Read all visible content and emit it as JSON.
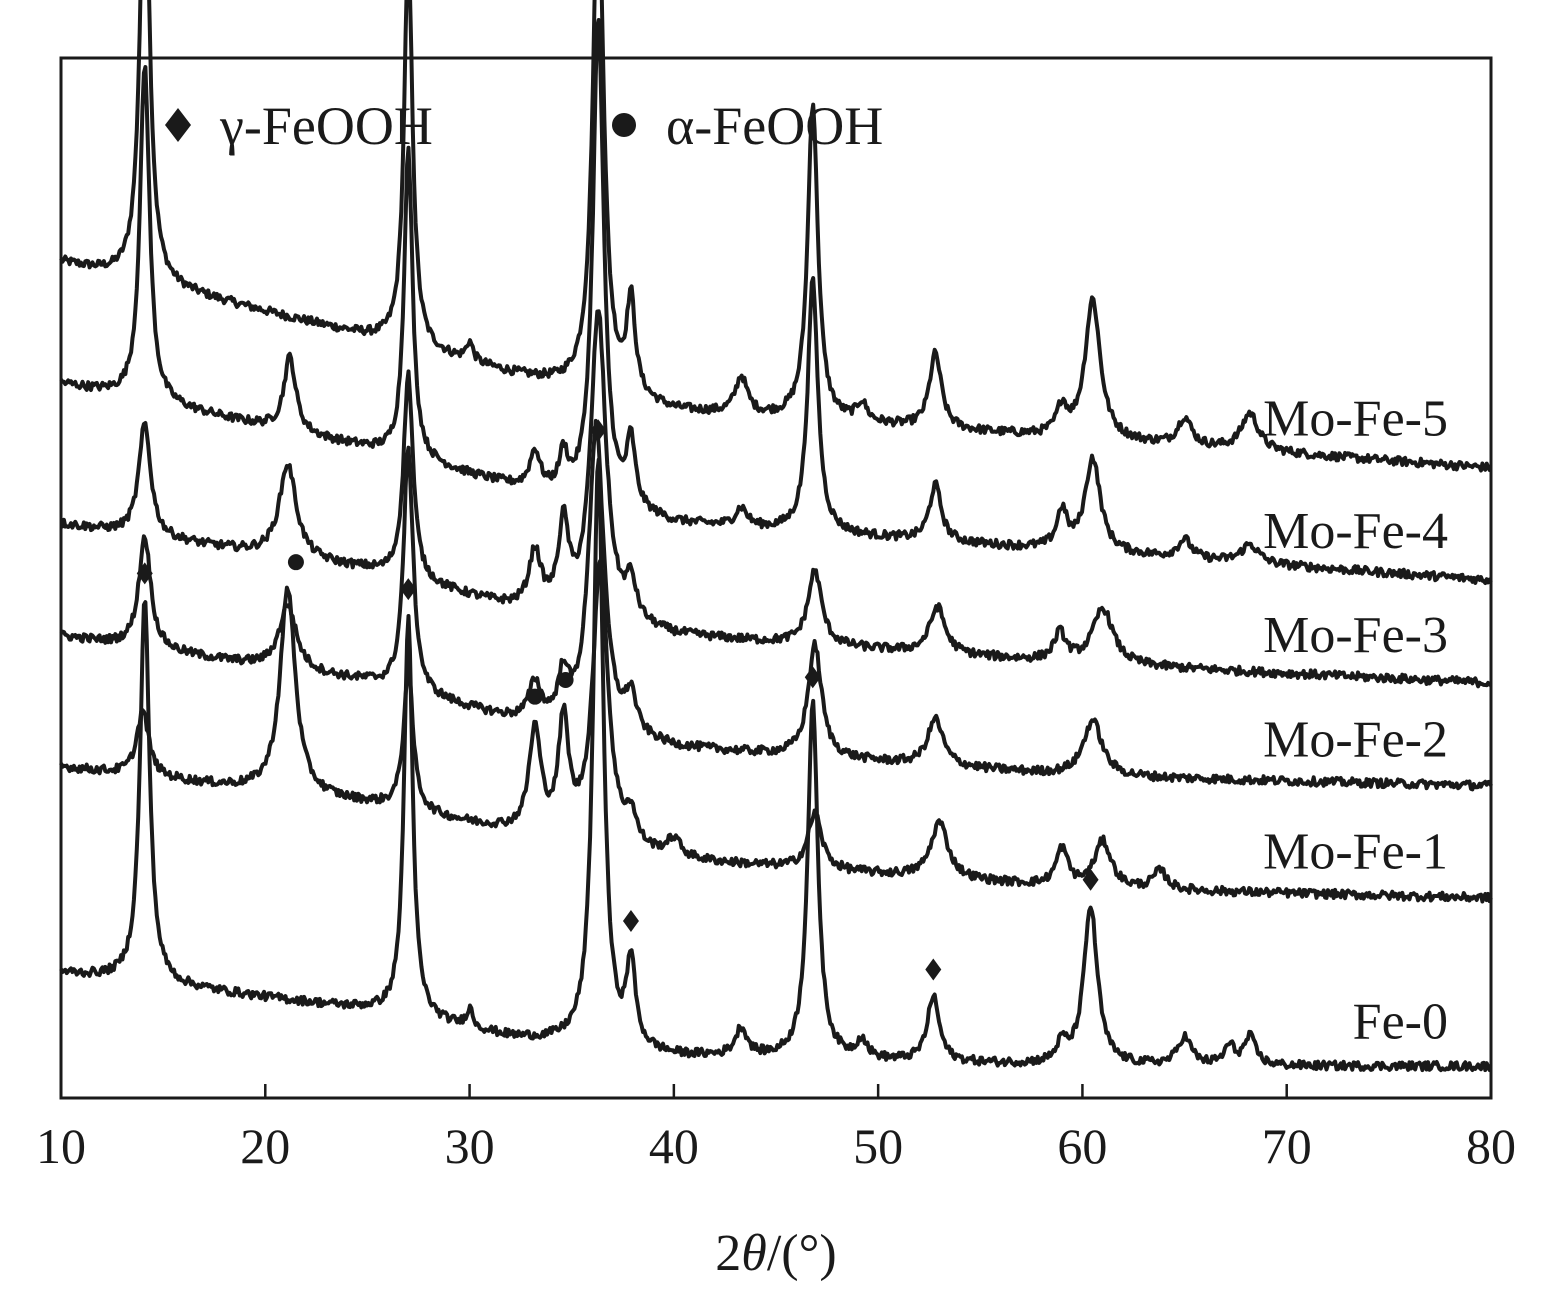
{
  "chart_data": {
    "type": "line",
    "xlabel_parts": {
      "prefix": "2",
      "symbol": "θ",
      "suffix": "/(°)"
    },
    "ylabel": "",
    "xlim": [
      10,
      80
    ],
    "x_ticks": [
      10,
      20,
      30,
      40,
      50,
      60,
      70,
      80
    ],
    "y_axis_shown": false,
    "grid": false,
    "legend_position": "top-left",
    "legend": [
      {
        "marker": "diamond",
        "label": "γ-FeOOH"
      },
      {
        "marker": "circle",
        "label": "α-FeOOH"
      }
    ],
    "line_color": "#1a1a1a",
    "series": [
      {
        "name": "Mo-Fe-5",
        "baseline": [
          [
            10,
            0.88
          ],
          [
            25,
            0.8
          ],
          [
            32,
            0.76
          ],
          [
            40,
            0.72
          ],
          [
            60,
            0.69
          ],
          [
            80,
            0.66
          ]
        ],
        "peaks": [
          [
            14.1,
            0.48,
            0.28
          ],
          [
            27,
            0.42,
            0.25
          ],
          [
            30,
            0.02,
            0.2
          ],
          [
            36.3,
            0.55,
            0.32
          ],
          [
            37.9,
            0.1,
            0.25
          ],
          [
            43.3,
            0.04,
            0.35
          ],
          [
            46.8,
            0.34,
            0.3
          ],
          [
            49.2,
            0.02,
            0.3
          ],
          [
            52.8,
            0.08,
            0.35
          ],
          [
            59,
            0.03,
            0.3
          ],
          [
            60.5,
            0.15,
            0.45
          ],
          [
            65,
            0.03,
            0.4
          ],
          [
            68.2,
            0.04,
            0.5
          ]
        ]
      },
      {
        "name": "Mo-Fe-4",
        "baseline": [
          [
            10,
            0.75
          ],
          [
            25,
            0.68
          ],
          [
            32,
            0.64
          ],
          [
            40,
            0.6
          ],
          [
            60,
            0.57
          ],
          [
            80,
            0.54
          ]
        ],
        "peaks": [
          [
            14.1,
            0.36,
            0.28
          ],
          [
            21.2,
            0.08,
            0.35
          ],
          [
            27,
            0.33,
            0.25
          ],
          [
            33.2,
            0.04,
            0.3
          ],
          [
            34.6,
            0.04,
            0.25
          ],
          [
            36.3,
            0.52,
            0.32
          ],
          [
            37.9,
            0.07,
            0.25
          ],
          [
            43.3,
            0.02,
            0.35
          ],
          [
            46.8,
            0.27,
            0.3
          ],
          [
            52.8,
            0.06,
            0.35
          ],
          [
            59,
            0.04,
            0.3
          ],
          [
            60.5,
            0.1,
            0.45
          ],
          [
            65,
            0.02,
            0.4
          ],
          [
            68.2,
            0.02,
            0.5
          ]
        ]
      },
      {
        "name": "Mo-Fe-3",
        "baseline": [
          [
            10,
            0.6
          ],
          [
            25,
            0.55
          ],
          [
            32,
            0.51
          ],
          [
            40,
            0.48
          ],
          [
            60,
            0.45
          ],
          [
            80,
            0.43
          ]
        ],
        "peaks": [
          [
            14.1,
            0.12,
            0.35
          ],
          [
            21.1,
            0.1,
            0.5
          ],
          [
            27,
            0.22,
            0.28
          ],
          [
            33.2,
            0.06,
            0.35
          ],
          [
            34.6,
            0.09,
            0.3
          ],
          [
            36.3,
            0.33,
            0.45
          ],
          [
            37.9,
            0.04,
            0.3
          ],
          [
            46.9,
            0.08,
            0.4
          ],
          [
            52.9,
            0.05,
            0.45
          ],
          [
            58.9,
            0.03,
            0.35
          ],
          [
            61,
            0.06,
            0.6
          ]
        ]
      },
      {
        "name": "Mo-Fe-2",
        "baseline": [
          [
            10,
            0.48
          ],
          [
            25,
            0.43
          ],
          [
            32,
            0.39
          ],
          [
            40,
            0.36
          ],
          [
            60,
            0.33
          ],
          [
            80,
            0.32
          ]
        ],
        "peaks": [
          [
            14.1,
            0.12,
            0.35
          ],
          [
            21.1,
            0.07,
            0.5
          ],
          [
            27,
            0.26,
            0.28
          ],
          [
            33.2,
            0.04,
            0.35
          ],
          [
            34.6,
            0.05,
            0.3
          ],
          [
            36.2,
            0.33,
            0.45
          ],
          [
            37.9,
            0.04,
            0.3
          ],
          [
            46.9,
            0.12,
            0.4
          ],
          [
            52.8,
            0.05,
            0.45
          ],
          [
            60.5,
            0.06,
            0.55
          ]
        ]
      },
      {
        "name": "Mo-Fe-1",
        "baseline": [
          [
            10,
            0.34
          ],
          [
            25,
            0.3
          ],
          [
            32,
            0.27
          ],
          [
            40,
            0.24
          ],
          [
            60,
            0.21
          ],
          [
            80,
            0.2
          ]
        ],
        "peaks": [
          [
            14,
            0.07,
            0.35
          ],
          [
            21.1,
            0.22,
            0.45
          ],
          [
            27,
            0.15,
            0.28
          ],
          [
            33.2,
            0.11,
            0.35
          ],
          [
            34.6,
            0.12,
            0.3
          ],
          [
            36.4,
            0.3,
            0.45
          ],
          [
            37.9,
            0.03,
            0.3
          ],
          [
            40,
            0.02,
            0.4
          ],
          [
            46.9,
            0.06,
            0.4
          ],
          [
            53,
            0.06,
            0.5
          ],
          [
            59,
            0.04,
            0.35
          ],
          [
            61,
            0.05,
            0.5
          ],
          [
            63.8,
            0.02,
            0.4
          ]
        ]
      },
      {
        "name": "Fe-0",
        "baseline": [
          [
            10,
            0.12
          ],
          [
            25,
            0.08
          ],
          [
            32,
            0.05
          ],
          [
            40,
            0.03
          ],
          [
            60,
            0.02
          ],
          [
            80,
            0.02
          ]
        ],
        "peaks": [
          [
            14.1,
            0.41,
            0.28
          ],
          [
            27,
            0.43,
            0.25
          ],
          [
            30,
            0.02,
            0.2
          ],
          [
            36.3,
            0.63,
            0.3
          ],
          [
            37.9,
            0.09,
            0.25
          ],
          [
            43.3,
            0.03,
            0.35
          ],
          [
            46.8,
            0.38,
            0.3
          ],
          [
            49.2,
            0.02,
            0.3
          ],
          [
            52.7,
            0.07,
            0.35
          ],
          [
            59,
            0.02,
            0.3
          ],
          [
            60.4,
            0.17,
            0.4
          ],
          [
            65,
            0.03,
            0.4
          ],
          [
            67.2,
            0.02,
            0.3
          ],
          [
            68.2,
            0.03,
            0.35
          ]
        ]
      }
    ],
    "annotations": [
      {
        "marker": "diamond",
        "series": "Fe-0",
        "x": [
          14.1,
          27,
          36.3,
          37.9,
          46.8,
          52.7,
          60.4
        ]
      },
      {
        "marker": "circle",
        "series": "Mo-Fe-1",
        "x": [
          21.5,
          33.2,
          34.7
        ]
      }
    ]
  }
}
